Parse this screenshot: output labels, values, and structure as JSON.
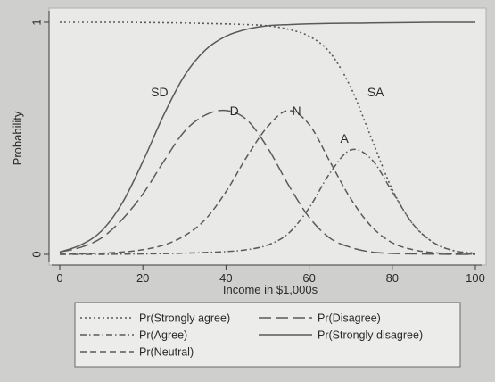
{
  "chart_data": {
    "type": "line",
    "xlabel": "Income in $1,000s",
    "ylabel": "Probability",
    "xlim": [
      0,
      100
    ],
    "ylim": [
      0,
      1
    ],
    "x_ticks": [
      0,
      20,
      40,
      60,
      80,
      100
    ],
    "y_ticks": [
      0,
      1
    ],
    "grid": false,
    "legend_position": "bottom",
    "colors": {
      "plot_background": "#e9e9e7",
      "line": "#5a5a5a",
      "page_background": "#cfcfcd"
    },
    "x": [
      0,
      5,
      10,
      15,
      20,
      25,
      30,
      35,
      40,
      45,
      50,
      55,
      60,
      65,
      70,
      75,
      80,
      85,
      90,
      95,
      100
    ],
    "series": [
      {
        "name": "Pr(Strongly agree)",
        "dash": "dotted",
        "values": [
          1.0,
          1.0,
          1.0,
          1.0,
          0.999,
          0.998,
          0.997,
          0.995,
          0.993,
          0.99,
          0.985,
          0.97,
          0.94,
          0.87,
          0.72,
          0.5,
          0.28,
          0.13,
          0.05,
          0.015,
          0.005
        ]
      },
      {
        "name": "Pr(Agree)",
        "dash": "dash-dot",
        "values": [
          0.0,
          0.0,
          0.0,
          0.001,
          0.002,
          0.003,
          0.005,
          0.008,
          0.012,
          0.02,
          0.04,
          0.09,
          0.2,
          0.35,
          0.45,
          0.41,
          0.27,
          0.13,
          0.05,
          0.015,
          0.004
        ]
      },
      {
        "name": "Pr(Neutral)",
        "dash": "short-dash",
        "values": [
          0.0,
          0.002,
          0.005,
          0.01,
          0.02,
          0.04,
          0.08,
          0.15,
          0.27,
          0.42,
          0.55,
          0.62,
          0.56,
          0.4,
          0.24,
          0.12,
          0.05,
          0.02,
          0.007,
          0.002,
          0.001
        ]
      },
      {
        "name": "Pr(Disagree)",
        "dash": "long-dash",
        "values": [
          0.01,
          0.03,
          0.07,
          0.15,
          0.26,
          0.4,
          0.53,
          0.6,
          0.62,
          0.58,
          0.46,
          0.3,
          0.16,
          0.07,
          0.03,
          0.01,
          0.004,
          0.002,
          0.001,
          0.0,
          0.0
        ]
      },
      {
        "name": "Pr(Strongly disagree)",
        "dash": "solid",
        "values": [
          0.01,
          0.04,
          0.1,
          0.22,
          0.4,
          0.6,
          0.77,
          0.88,
          0.94,
          0.97,
          0.985,
          0.99,
          0.993,
          0.995,
          0.996,
          0.997,
          0.998,
          0.999,
          1.0,
          1.0,
          1.0
        ]
      }
    ],
    "annotations": [
      {
        "text": "SD",
        "x": 24,
        "y": 0.68
      },
      {
        "text": "D",
        "x": 42,
        "y": 0.6
      },
      {
        "text": "N",
        "x": 57,
        "y": 0.6
      },
      {
        "text": "SA",
        "x": 76,
        "y": 0.68
      },
      {
        "text": "A",
        "x": 68.5,
        "y": 0.48
      }
    ]
  }
}
